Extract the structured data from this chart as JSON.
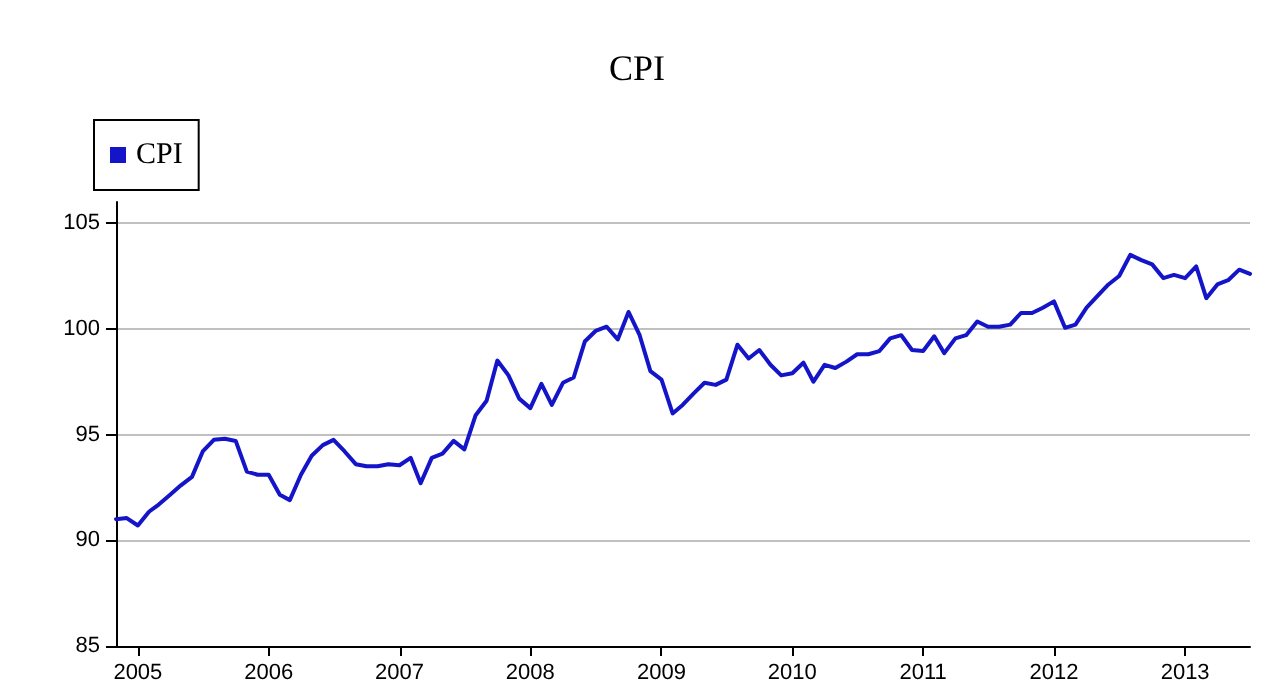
{
  "chart_data": {
    "type": "line",
    "title": "CPI",
    "x": [
      "2004-11",
      "2004-12",
      "2005-01",
      "2005-02",
      "2005-03",
      "2005-04",
      "2005-05",
      "2005-06",
      "2005-07",
      "2005-08",
      "2005-09",
      "2005-10",
      "2005-11",
      "2005-12",
      "2006-01",
      "2006-02",
      "2006-03",
      "2006-04",
      "2006-05",
      "2006-06",
      "2006-07",
      "2006-08",
      "2006-09",
      "2006-10",
      "2006-11",
      "2006-12",
      "2007-01",
      "2007-02",
      "2007-03",
      "2007-04",
      "2007-05",
      "2007-06",
      "2007-07",
      "2007-08",
      "2007-09",
      "2007-10",
      "2007-11",
      "2007-12",
      "2008-01",
      "2008-02",
      "2008-03",
      "2008-04",
      "2008-05",
      "2008-06",
      "2008-07",
      "2008-08",
      "2008-09",
      "2008-10",
      "2008-11",
      "2008-12",
      "2009-01",
      "2009-02",
      "2009-03",
      "2009-04",
      "2009-05",
      "2009-06",
      "2009-07",
      "2009-08",
      "2009-09",
      "2009-10",
      "2009-11",
      "2009-12",
      "2010-01",
      "2010-02",
      "2010-03",
      "2010-04",
      "2010-05",
      "2010-06",
      "2010-07",
      "2010-08",
      "2010-09",
      "2010-10",
      "2010-11",
      "2010-12",
      "2011-01",
      "2011-02",
      "2011-03",
      "2011-04",
      "2011-05",
      "2011-06",
      "2011-07",
      "2011-08",
      "2011-09",
      "2011-10",
      "2011-11",
      "2011-12",
      "2012-01",
      "2012-02",
      "2012-03",
      "2012-04",
      "2012-05",
      "2012-06",
      "2012-07",
      "2012-08",
      "2012-09",
      "2012-10",
      "2012-11",
      "2012-12",
      "2013-01",
      "2013-02",
      "2013-03",
      "2013-04",
      "2013-05",
      "2013-06",
      "2013-07"
    ],
    "series": [
      {
        "name": "CPI",
        "color": "#1414c8",
        "values": [
          91.0,
          91.05,
          90.7,
          91.35,
          91.7,
          92.15,
          92.6,
          93.0,
          94.2,
          94.75,
          94.8,
          94.7,
          93.25,
          93.1,
          93.1,
          92.15,
          91.9,
          93.1,
          94.0,
          94.5,
          94.75,
          94.2,
          93.6,
          93.5,
          93.5,
          93.6,
          93.55,
          93.9,
          92.7,
          93.9,
          94.1,
          94.7,
          94.3,
          95.9,
          96.6,
          98.5,
          97.8,
          96.7,
          96.25,
          97.4,
          96.4,
          97.45,
          97.7,
          99.4,
          99.9,
          100.1,
          99.5,
          100.8,
          99.7,
          98.0,
          97.6,
          96.0,
          96.4,
          96.95,
          97.45,
          97.35,
          97.6,
          99.25,
          98.6,
          99.0,
          98.3,
          97.8,
          97.9,
          98.4,
          97.5,
          98.3,
          98.15,
          98.45,
          98.8,
          98.8,
          98.95,
          99.55,
          99.7,
          99.0,
          98.95,
          99.65,
          98.85,
          99.55,
          99.7,
          100.35,
          100.1,
          100.1,
          100.2,
          100.75,
          100.75,
          101.0,
          101.3,
          100.05,
          100.2,
          101.0,
          101.55,
          102.1,
          102.5,
          103.5,
          103.25,
          103.05,
          102.4,
          102.55,
          102.4,
          102.95,
          101.45,
          102.1,
          102.3,
          102.8,
          102.6
        ]
      }
    ],
    "xlim": [
      "2004-11",
      "2013-07"
    ],
    "xticks": [
      {
        "value": "2005",
        "label": "2005"
      },
      {
        "value": "2006",
        "label": "2006"
      },
      {
        "value": "2007",
        "label": "2007"
      },
      {
        "value": "2008",
        "label": "2008"
      },
      {
        "value": "2009",
        "label": "2009"
      },
      {
        "value": "2010",
        "label": "2010"
      },
      {
        "value": "2011",
        "label": "2011"
      },
      {
        "value": "2012",
        "label": "2012"
      },
      {
        "value": "2013",
        "label": "2013"
      }
    ],
    "ylim": [
      85,
      106
    ],
    "yticks": [
      85,
      90,
      95,
      100,
      105
    ],
    "grid": "y",
    "legend": "top left",
    "marker": "none",
    "line_style": "solid"
  }
}
